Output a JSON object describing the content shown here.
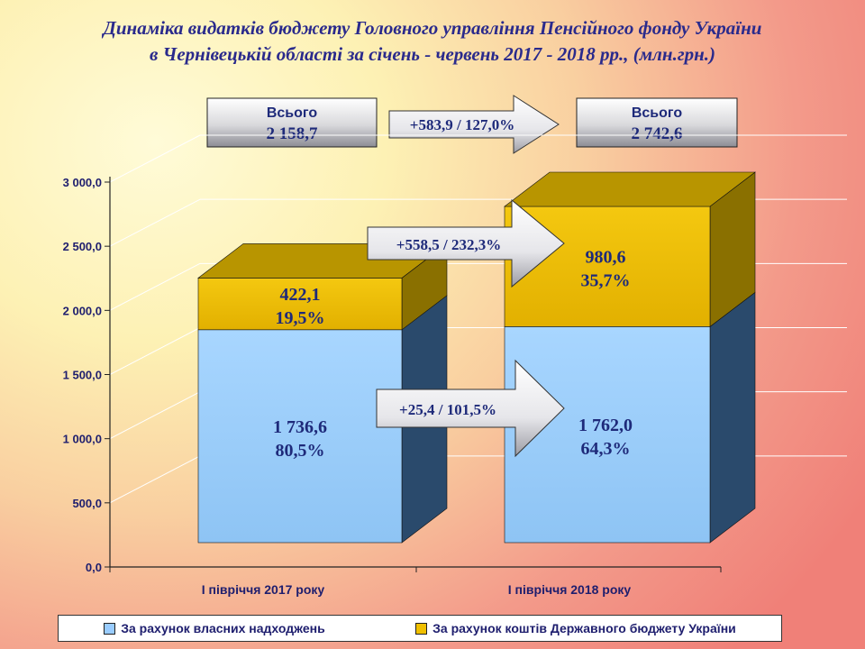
{
  "title_line1": "Динаміка видатків бюджету Головного управління Пенсійного фонду України",
  "title_line2": "в Чернівецькій області  за січень - червень 2017 - 2018 рр., (млн.грн.)",
  "totals": {
    "left": {
      "label": "Всього",
      "value": "2 158,7"
    },
    "right": {
      "label": "Всього",
      "value": "2 742,6"
    },
    "change": "+583,9 / 127,0%"
  },
  "arrows": {
    "budget_change": "+558,5 / 232,3%",
    "own_change": "+25,4 / 101,5%"
  },
  "colors": {
    "own_front": "#99ccff",
    "budget_front": "#f0c000"
  },
  "chart_data": {
    "type": "bar",
    "stacked": true,
    "categories": [
      "І півріччя 2017 року",
      "І півріччя 2018 року"
    ],
    "series": [
      {
        "name": "За рахунок власних надходжень",
        "values": [
          1736.6,
          1762.0
        ],
        "labels": [
          "1 736,6",
          "1 762,0"
        ],
        "percents": [
          "80,5%",
          "64,3%"
        ],
        "color": "#99ccff"
      },
      {
        "name": "За рахунок коштів Державного бюджету України",
        "values": [
          422.1,
          980.6
        ],
        "labels": [
          "422,1",
          "980,6"
        ],
        "percents": [
          "19,5%",
          "35,7%"
        ],
        "color": "#f0c000"
      }
    ],
    "ylim": [
      0,
      3000
    ],
    "yticks": [
      0,
      500,
      1000,
      1500,
      2000,
      2500,
      3000
    ],
    "ytick_labels": [
      "0,0",
      "500,0",
      "1 000,0",
      "1 500,0",
      "2 000,0",
      "2 500,0",
      "3 000,0"
    ],
    "grid": true,
    "legend_position": "bottom"
  }
}
